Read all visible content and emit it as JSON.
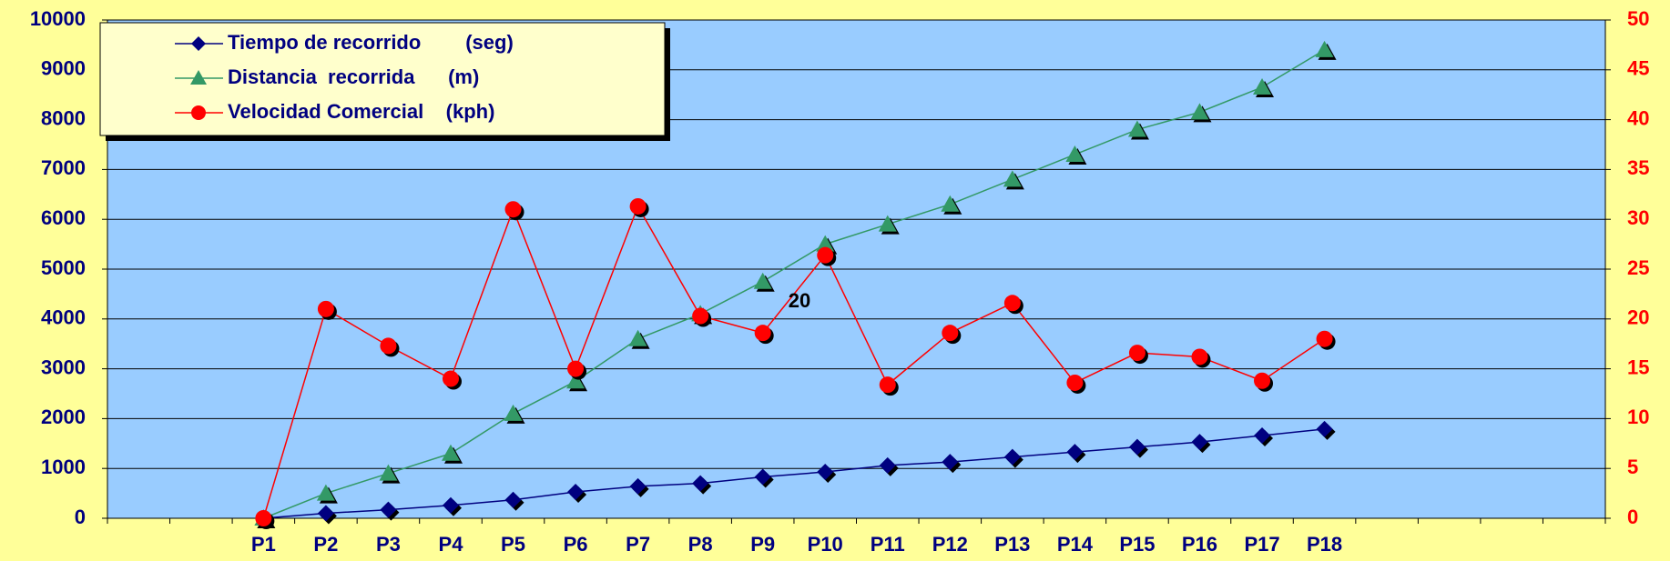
{
  "chart_data": {
    "type": "line",
    "categories": [
      null,
      null,
      "P1",
      "P2",
      "P3",
      "P4",
      "P5",
      "P6",
      "P7",
      "P8",
      "P9",
      "P10",
      "P11",
      "P12",
      "P13",
      "P14",
      "P15",
      "P16",
      "P17",
      "P18",
      null,
      null,
      null,
      null
    ],
    "series": [
      {
        "name": "Tiempo de recorrido        (seg)",
        "color": "#000080",
        "marker": "diamond",
        "values": [
          null,
          null,
          0,
          100,
          170,
          260,
          370,
          530,
          640,
          700,
          830,
          930,
          1060,
          1130,
          1230,
          1330,
          1430,
          1530,
          1660,
          1790,
          null,
          null,
          null,
          null
        ]
      },
      {
        "name": "Distancia  recorrida      (m)",
        "color": "#339966",
        "marker": "triangle",
        "values": [
          null,
          null,
          0,
          500,
          900,
          1300,
          2100,
          2750,
          3600,
          4100,
          4750,
          5500,
          5900,
          6300,
          6800,
          7300,
          7800,
          8150,
          8650,
          9400,
          null,
          null,
          null,
          null
        ]
      },
      {
        "name": "Velocidad Comercial    (kph)",
        "color": "#ff0000",
        "marker": "circle",
        "axis": "y2",
        "values": [
          null,
          null,
          0,
          21,
          17.3,
          14,
          31,
          15,
          31.3,
          20.3,
          18.6,
          26.4,
          13.4,
          18.6,
          21.6,
          13.6,
          16.6,
          16.2,
          13.8,
          18,
          null,
          null,
          null,
          null
        ]
      }
    ],
    "annotations": [
      "20"
    ],
    "ylim": [
      0,
      10000
    ],
    "yticks": [
      0,
      1000,
      2000,
      3000,
      4000,
      5000,
      6000,
      7000,
      8000,
      9000,
      10000
    ],
    "y2lim": [
      0,
      50
    ],
    "y2ticks": [
      0,
      5,
      10,
      15,
      20,
      25,
      30,
      35,
      40,
      45,
      50
    ],
    "grid": true,
    "legend": "top-left"
  }
}
